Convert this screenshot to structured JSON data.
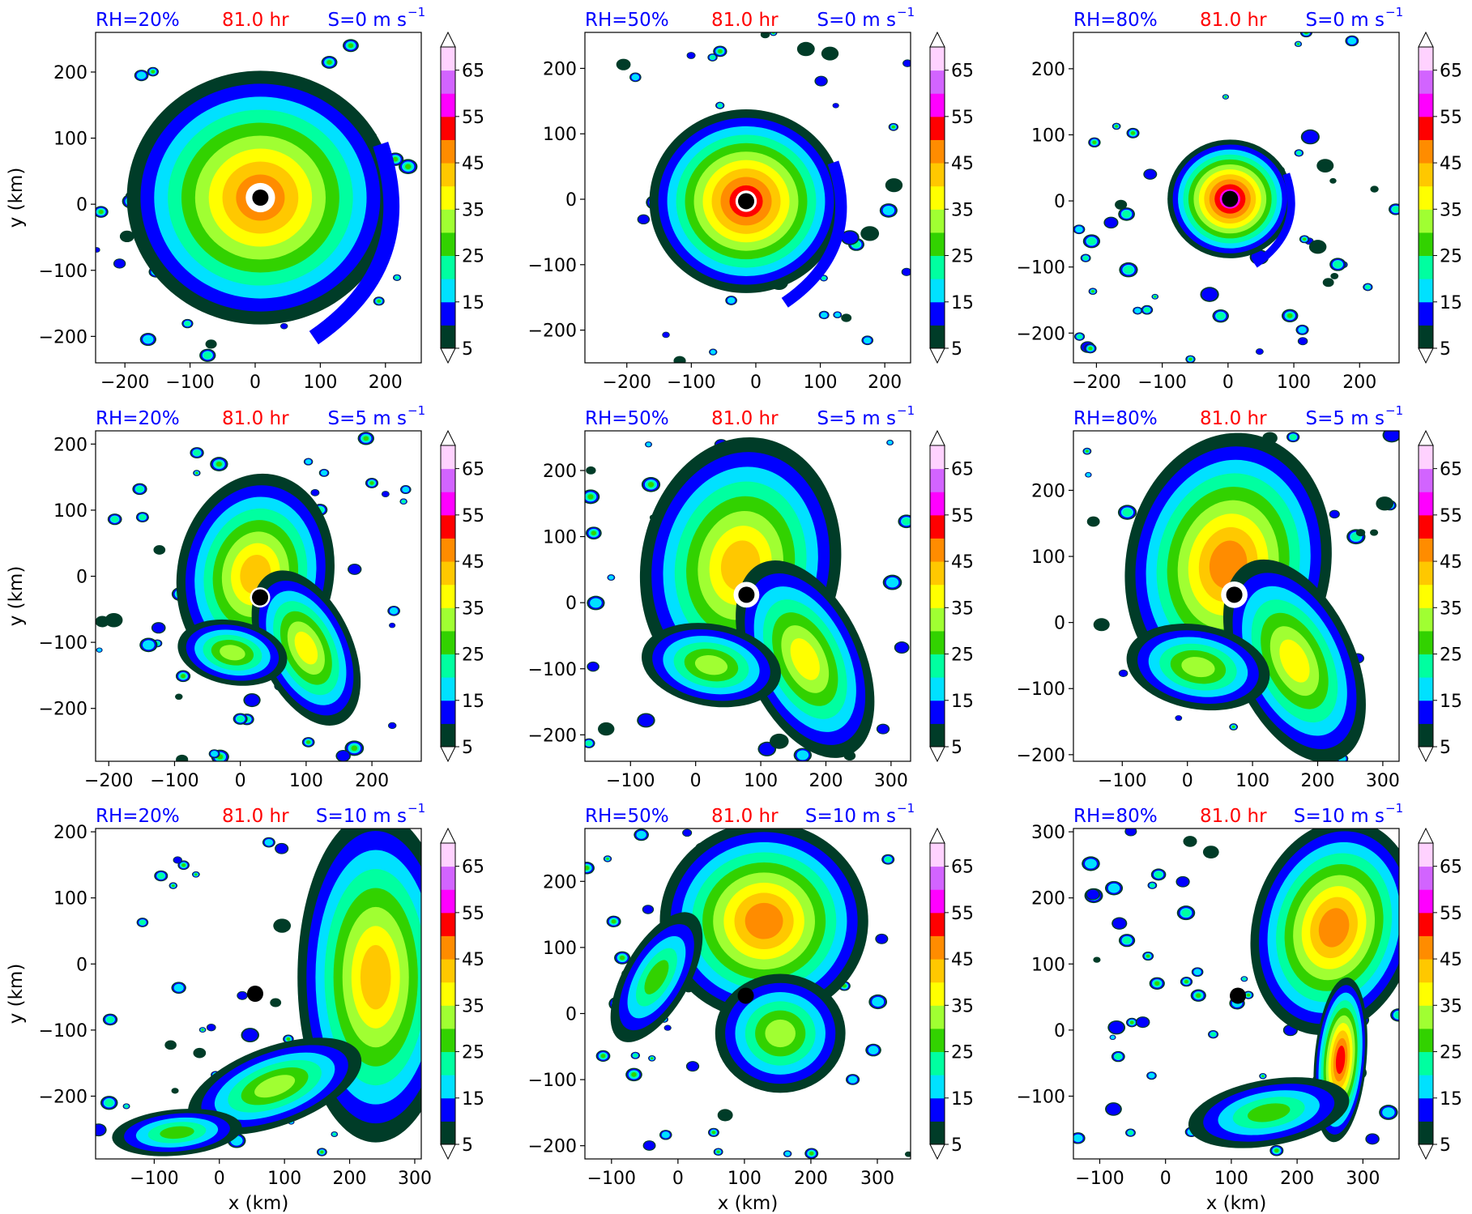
{
  "colors": {
    "title_left": "#0000ff",
    "title_mid": "#ff0000",
    "title_right": "#0000ff",
    "levels": [
      "#003c28",
      "#0000ff",
      "#00e1ff",
      "#00ffa0",
      "#32d200",
      "#a0ff32",
      "#ffff00",
      "#ffc800",
      "#ff8c00",
      "#ff0000",
      "#ff00ff",
      "#d264ff",
      "#ffd2ff"
    ],
    "center_marker": "#000000"
  },
  "colorbar": {
    "ticks": [
      "5",
      "15",
      "25",
      "35",
      "45",
      "55",
      "65"
    ],
    "extend": "both"
  },
  "chart_data": [
    {
      "type": "heatmap",
      "row": 0,
      "col": 0,
      "title_left": "RH=20%",
      "title_mid": "81.0 hr",
      "title_right": "S=0 m s",
      "title_sup": "−1",
      "xlabel": "",
      "ylabel": "y (km)",
      "xticks": [
        "−200",
        "−100",
        "0",
        "100",
        "200"
      ],
      "yticks": [
        "−200",
        "−100",
        "0",
        "100",
        "200"
      ],
      "xlim": [
        -245,
        255
      ],
      "ylim": [
        -240,
        260
      ],
      "center": [
        8,
        10
      ],
      "storm": "strong-axisym",
      "extent": 205
    },
    {
      "type": "heatmap",
      "row": 0,
      "col": 1,
      "title_left": "RH=50%",
      "title_mid": "81.0 hr",
      "title_right": "S=0 m s",
      "title_sup": "−1",
      "xlabel": "",
      "ylabel": "",
      "xticks": [
        "−200",
        "−100",
        "0",
        "100",
        "200"
      ],
      "yticks": [
        "−200",
        "−100",
        "0",
        "100",
        "200"
      ],
      "xlim": [
        -265,
        240
      ],
      "ylim": [
        -250,
        255
      ],
      "center": [
        -15,
        -3
      ],
      "storm": "medium-axisym",
      "extent": 150
    },
    {
      "type": "heatmap",
      "row": 0,
      "col": 2,
      "title_left": "RH=80%",
      "title_mid": "81.0 hr",
      "title_right": "S=0 m s",
      "title_sup": "−1",
      "xlabel": "",
      "ylabel": "",
      "xticks": [
        "−200",
        "−100",
        "0",
        "100",
        "200"
      ],
      "yticks": [
        "−200",
        "−100",
        "0",
        "100",
        "200"
      ],
      "xlim": [
        -235,
        260
      ],
      "ylim": [
        -245,
        255
      ],
      "center": [
        3,
        3
      ],
      "storm": "compact",
      "extent": 95
    },
    {
      "type": "heatmap",
      "row": 1,
      "col": 0,
      "title_left": "RH=20%",
      "title_mid": "81.0 hr",
      "title_right": "S=5 m s",
      "title_sup": "−1",
      "xlabel": "",
      "ylabel": "y (km)",
      "xticks": [
        "−200",
        "−100",
        "0",
        "100",
        "200"
      ],
      "yticks": [
        "−200",
        "−100",
        "0",
        "100",
        "200"
      ],
      "xlim": [
        -220,
        275
      ],
      "ylim": [
        -280,
        220
      ],
      "center": [
        30,
        -32
      ],
      "storm": "sheared-weak",
      "extent": 140
    },
    {
      "type": "heatmap",
      "row": 1,
      "col": 1,
      "title_left": "RH=50%",
      "title_mid": "81.0 hr",
      "title_right": "S=5 m s",
      "title_sup": "−1",
      "xlabel": "",
      "ylabel": "",
      "xticks": [
        "−100",
        "0",
        "100",
        "200",
        "300"
      ],
      "yticks": [
        "−200",
        "−100",
        "0",
        "100",
        "200"
      ],
      "xlim": [
        -170,
        330
      ],
      "ylim": [
        -240,
        260
      ],
      "center": [
        78,
        12
      ],
      "storm": "sheared-medium",
      "extent": 180
    },
    {
      "type": "heatmap",
      "row": 1,
      "col": 2,
      "title_left": "RH=80%",
      "title_mid": "81.0 hr",
      "title_right": "S=5 m s",
      "title_sup": "−1",
      "xlabel": "",
      "ylabel": "",
      "xticks": [
        "−100",
        "0",
        "100",
        "200",
        "300"
      ],
      "yticks": [
        "−200",
        "−100",
        "0",
        "100",
        "200"
      ],
      "xlim": [
        -175,
        325
      ],
      "ylim": [
        -210,
        290
      ],
      "center": [
        72,
        42
      ],
      "storm": "sheared-strong",
      "extent": 185
    },
    {
      "type": "heatmap",
      "row": 2,
      "col": 0,
      "title_left": "RH=20%",
      "title_mid": "81.0 hr",
      "title_right": "S=10 m s",
      "title_sup": "−1",
      "xlabel": "x (km)",
      "ylabel": "y (km)",
      "xticks": [
        "−100",
        "0",
        "100",
        "200",
        "300"
      ],
      "yticks": [
        "−200",
        "−100",
        "0",
        "100",
        "200"
      ],
      "xlim": [
        -190,
        310
      ],
      "ylim": [
        -295,
        205
      ],
      "center": [
        55,
        -45
      ],
      "storm": "strong-shear-east",
      "extent": 250
    },
    {
      "type": "heatmap",
      "row": 2,
      "col": 1,
      "title_left": "RH=50%",
      "title_mid": "81.0 hr",
      "title_right": "S=10 m s",
      "title_sup": "−1",
      "xlabel": "x (km)",
      "ylabel": "",
      "xticks": [
        "−100",
        "0",
        "100",
        "200",
        "300"
      ],
      "yticks": [
        "−200",
        "−100",
        "0",
        "100",
        "200"
      ],
      "xlim": [
        -140,
        350
      ],
      "ylim": [
        -220,
        280
      ],
      "center": [
        102,
        27
      ],
      "storm": "strong-shear-north",
      "extent": 250
    },
    {
      "type": "heatmap",
      "row": 2,
      "col": 2,
      "title_left": "RH=80%",
      "title_mid": "81.0 hr",
      "title_right": "S=10 m s",
      "title_sup": "−1",
      "xlabel": "x (km)",
      "ylabel": "",
      "xticks": [
        "−100",
        "0",
        "100",
        "200",
        "300"
      ],
      "yticks": [
        "−100",
        "0",
        "100",
        "200",
        "300"
      ],
      "xlim": [
        -140,
        355
      ],
      "ylim": [
        -195,
        305
      ],
      "center": [
        110,
        52
      ],
      "storm": "strong-shear-ne",
      "extent": 260
    }
  ]
}
